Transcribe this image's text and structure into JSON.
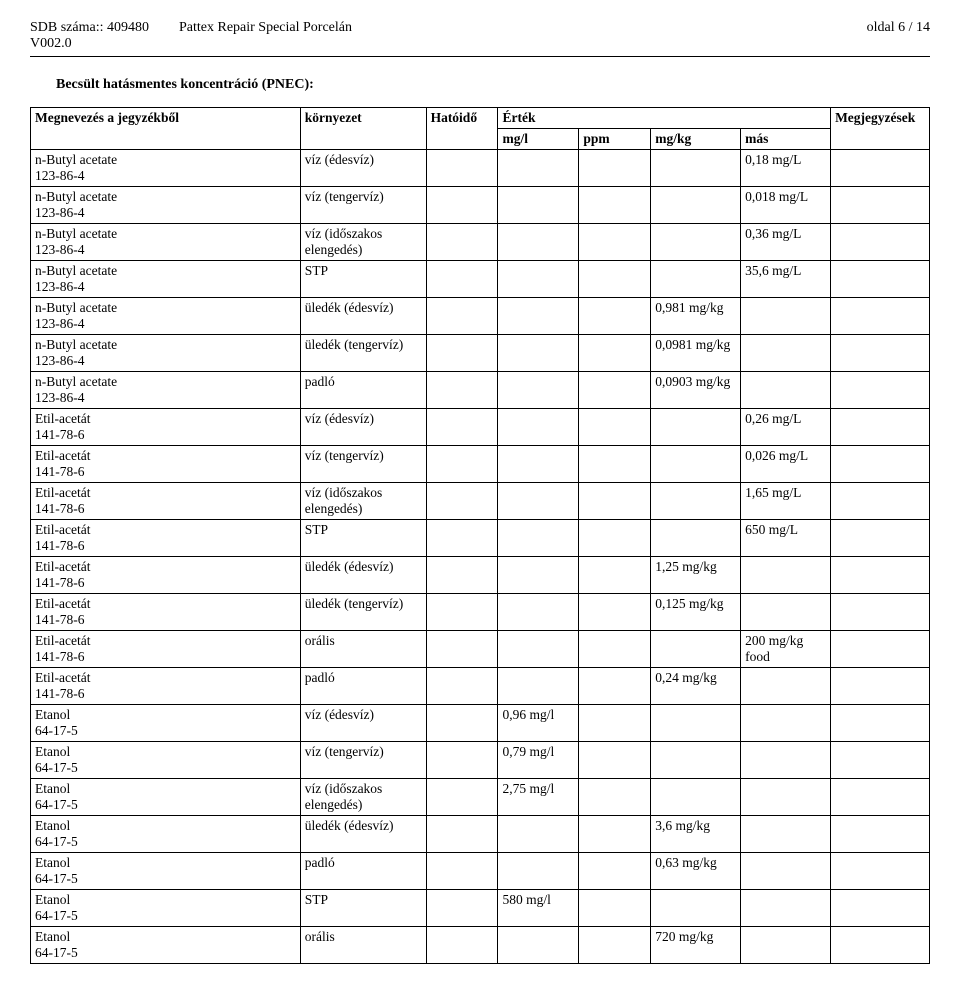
{
  "header": {
    "sdb_label": "SDB száma:: 409480",
    "version": "V002.0",
    "product": "Pattex Repair Special Porcelán",
    "page": "oldal 6 / 14"
  },
  "section_title": "Becsült hatásmentes koncentráció (PNEC):",
  "table": {
    "columns": {
      "name": "Megnevezés a jegyzékből",
      "env": "környezet",
      "hat": "Hatóidő",
      "value": "Érték",
      "mgl": "mg/l",
      "ppm": "ppm",
      "mgkg": "mg/kg",
      "mas": "más",
      "notes": "Megjegyzések"
    },
    "rows": [
      {
        "name": "n-Butyl acetate\n123-86-4",
        "env": "víz (édesvíz)",
        "hat": "",
        "mgl": "",
        "ppm": "",
        "mgkg": "",
        "mas": "0,18 mg/L",
        "notes": ""
      },
      {
        "name": "n-Butyl acetate\n123-86-4",
        "env": "víz (tengervíz)",
        "hat": "",
        "mgl": "",
        "ppm": "",
        "mgkg": "",
        "mas": "0,018 mg/L",
        "notes": ""
      },
      {
        "name": "n-Butyl acetate\n123-86-4",
        "env": "víz (időszakos elengedés)",
        "hat": "",
        "mgl": "",
        "ppm": "",
        "mgkg": "",
        "mas": "0,36 mg/L",
        "notes": ""
      },
      {
        "name": "n-Butyl acetate\n123-86-4",
        "env": "STP",
        "hat": "",
        "mgl": "",
        "ppm": "",
        "mgkg": "",
        "mas": "35,6 mg/L",
        "notes": ""
      },
      {
        "name": "n-Butyl acetate\n123-86-4",
        "env": "üledék (édesvíz)",
        "hat": "",
        "mgl": "",
        "ppm": "",
        "mgkg": "0,981 mg/kg",
        "mas": "",
        "notes": ""
      },
      {
        "name": "n-Butyl acetate\n123-86-4",
        "env": "üledék (tengervíz)",
        "hat": "",
        "mgl": "",
        "ppm": "",
        "mgkg": "0,0981 mg/kg",
        "mas": "",
        "notes": ""
      },
      {
        "name": "n-Butyl acetate\n123-86-4",
        "env": "padló",
        "hat": "",
        "mgl": "",
        "ppm": "",
        "mgkg": "0,0903 mg/kg",
        "mas": "",
        "notes": ""
      },
      {
        "name": "Etil-acetát\n141-78-6",
        "env": "víz (édesvíz)",
        "hat": "",
        "mgl": "",
        "ppm": "",
        "mgkg": "",
        "mas": "0,26 mg/L",
        "notes": ""
      },
      {
        "name": "Etil-acetát\n141-78-6",
        "env": "víz (tengervíz)",
        "hat": "",
        "mgl": "",
        "ppm": "",
        "mgkg": "",
        "mas": "0,026 mg/L",
        "notes": ""
      },
      {
        "name": "Etil-acetát\n141-78-6",
        "env": "víz (időszakos elengedés)",
        "hat": "",
        "mgl": "",
        "ppm": "",
        "mgkg": "",
        "mas": "1,65 mg/L",
        "notes": ""
      },
      {
        "name": "Etil-acetát\n141-78-6",
        "env": "STP",
        "hat": "",
        "mgl": "",
        "ppm": "",
        "mgkg": "",
        "mas": "650 mg/L",
        "notes": ""
      },
      {
        "name": "Etil-acetát\n141-78-6",
        "env": "üledék (édesvíz)",
        "hat": "",
        "mgl": "",
        "ppm": "",
        "mgkg": "1,25 mg/kg",
        "mas": "",
        "notes": ""
      },
      {
        "name": "Etil-acetát\n141-78-6",
        "env": "üledék (tengervíz)",
        "hat": "",
        "mgl": "",
        "ppm": "",
        "mgkg": "0,125 mg/kg",
        "mas": "",
        "notes": ""
      },
      {
        "name": "Etil-acetát\n141-78-6",
        "env": "orális",
        "hat": "",
        "mgl": "",
        "ppm": "",
        "mgkg": "",
        "mas": "200 mg/kg food",
        "notes": ""
      },
      {
        "name": "Etil-acetát\n141-78-6",
        "env": "padló",
        "hat": "",
        "mgl": "",
        "ppm": "",
        "mgkg": "0,24 mg/kg",
        "mas": "",
        "notes": ""
      },
      {
        "name": "Etanol\n64-17-5",
        "env": "víz (édesvíz)",
        "hat": "",
        "mgl": "0,96 mg/l",
        "ppm": "",
        "mgkg": "",
        "mas": "",
        "notes": ""
      },
      {
        "name": "Etanol\n64-17-5",
        "env": "víz (tengervíz)",
        "hat": "",
        "mgl": "0,79 mg/l",
        "ppm": "",
        "mgkg": "",
        "mas": "",
        "notes": ""
      },
      {
        "name": "Etanol\n64-17-5",
        "env": "víz (időszakos elengedés)",
        "hat": "",
        "mgl": "2,75 mg/l",
        "ppm": "",
        "mgkg": "",
        "mas": "",
        "notes": ""
      },
      {
        "name": "Etanol\n64-17-5",
        "env": "üledék (édesvíz)",
        "hat": "",
        "mgl": "",
        "ppm": "",
        "mgkg": "3,6 mg/kg",
        "mas": "",
        "notes": ""
      },
      {
        "name": "Etanol\n64-17-5",
        "env": "padló",
        "hat": "",
        "mgl": "",
        "ppm": "",
        "mgkg": "0,63 mg/kg",
        "mas": "",
        "notes": ""
      },
      {
        "name": "Etanol\n64-17-5",
        "env": "STP",
        "hat": "",
        "mgl": "580 mg/l",
        "ppm": "",
        "mgkg": "",
        "mas": "",
        "notes": ""
      },
      {
        "name": "Etanol\n64-17-5",
        "env": "orális",
        "hat": "",
        "mgl": "",
        "ppm": "",
        "mgkg": "720 mg/kg",
        "mas": "",
        "notes": ""
      }
    ]
  }
}
